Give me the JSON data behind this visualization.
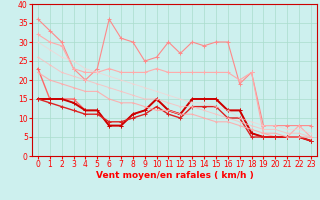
{
  "xlabel": "Vent moyen/en rafales ( km/h )",
  "background_color": "#cdf0ee",
  "grid_color": "#aaddcc",
  "xlim": [
    -0.5,
    23.5
  ],
  "ylim": [
    0,
    40
  ],
  "yticks": [
    0,
    5,
    10,
    15,
    20,
    25,
    30,
    35,
    40
  ],
  "xticks": [
    0,
    1,
    2,
    3,
    4,
    5,
    6,
    7,
    8,
    9,
    10,
    11,
    12,
    13,
    14,
    15,
    16,
    17,
    18,
    19,
    20,
    21,
    22,
    23
  ],
  "series": [
    {
      "color": "#ff8888",
      "alpha": 1.0,
      "linewidth": 0.8,
      "markersize": 2.5,
      "data": [
        36,
        33,
        30,
        23,
        20,
        23,
        36,
        31,
        30,
        25,
        26,
        30,
        27,
        30,
        29,
        30,
        30,
        19,
        22,
        8,
        8,
        8,
        8,
        8
      ]
    },
    {
      "color": "#ffaaaa",
      "alpha": 1.0,
      "linewidth": 0.8,
      "markersize": 2.5,
      "data": [
        32,
        30,
        29,
        23,
        22,
        22,
        23,
        22,
        22,
        22,
        23,
        22,
        22,
        22,
        22,
        22,
        22,
        20,
        22,
        6,
        5,
        5,
        8,
        5
      ]
    },
    {
      "color": "#ff6666",
      "alpha": 1.0,
      "linewidth": 1.0,
      "markersize": 2.5,
      "data": [
        23,
        15,
        15,
        15,
        12,
        12,
        8,
        8,
        11,
        12,
        15,
        12,
        11,
        15,
        15,
        15,
        12,
        12,
        6,
        5,
        5,
        5,
        5,
        4
      ]
    },
    {
      "color": "#cc0000",
      "alpha": 1.0,
      "linewidth": 1.4,
      "markersize": 3.0,
      "data": [
        15,
        15,
        15,
        14,
        12,
        12,
        8,
        8,
        11,
        12,
        15,
        12,
        11,
        15,
        15,
        15,
        12,
        12,
        6,
        5,
        5,
        5,
        5,
        4
      ]
    },
    {
      "color": "#dd2222",
      "alpha": 1.0,
      "linewidth": 1.0,
      "markersize": 2.5,
      "data": [
        15,
        14,
        13,
        12,
        11,
        11,
        9,
        9,
        10,
        11,
        13,
        11,
        10,
        13,
        13,
        13,
        10,
        10,
        5,
        5,
        5,
        5,
        5,
        4
      ]
    },
    {
      "color": "#ffaaaa",
      "alpha": 0.9,
      "linewidth": 0.8,
      "markersize": 2.0,
      "data": [
        22,
        20,
        19,
        18,
        17,
        17,
        15,
        14,
        14,
        13,
        12,
        12,
        11,
        11,
        10,
        9,
        9,
        8,
        7,
        6,
        6,
        5,
        5,
        5
      ]
    },
    {
      "color": "#ffbbbb",
      "alpha": 0.8,
      "linewidth": 0.7,
      "markersize": 1.8,
      "data": [
        26,
        24,
        22,
        21,
        20,
        19,
        18,
        17,
        16,
        15,
        15,
        14,
        13,
        13,
        12,
        11,
        10,
        9,
        8,
        7,
        7,
        6,
        6,
        5
      ]
    },
    {
      "color": "#ffcccc",
      "alpha": 0.7,
      "linewidth": 0.6,
      "markersize": 1.5,
      "data": [
        30,
        28,
        26,
        25,
        23,
        22,
        21,
        20,
        19,
        18,
        17,
        16,
        15,
        14,
        14,
        13,
        12,
        10,
        9,
        8,
        8,
        7,
        7,
        6
      ]
    }
  ]
}
